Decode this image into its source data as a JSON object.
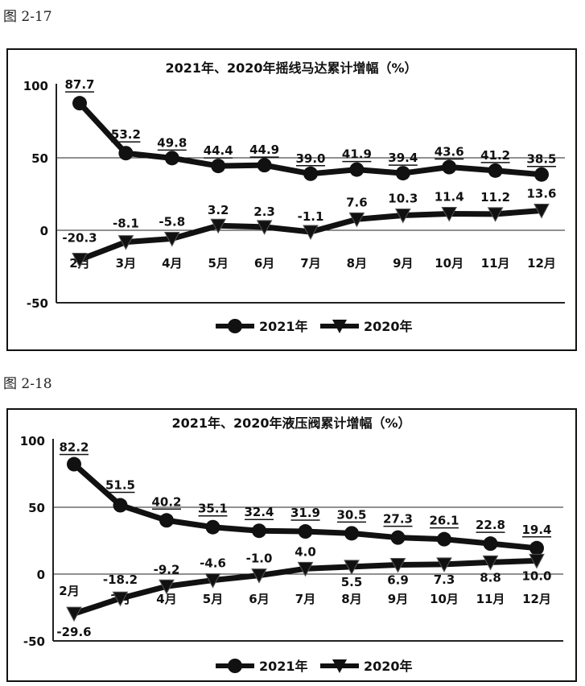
{
  "captions": [
    "图 2-17",
    "图 2-18"
  ],
  "colors": {
    "line": "#111111",
    "grid": "#222222",
    "background": "#ffffff"
  },
  "chart_data": [
    {
      "type": "line",
      "title": "2021年、2020年摇线马达累计增幅（%）",
      "categories": [
        "2月",
        "3月",
        "4月",
        "5月",
        "6月",
        "7月",
        "8月",
        "9月",
        "10月",
        "11月",
        "12月"
      ],
      "ylim": [
        -50,
        100
      ],
      "yticks": [
        "100",
        "50",
        "0",
        "-50"
      ],
      "grid": "horizontal lines at 50 and 0",
      "legend_position": "bottom",
      "series": [
        {
          "name": "2021年",
          "marker": "circle",
          "values": [
            87.7,
            53.2,
            49.8,
            44.4,
            44.9,
            39.0,
            41.9,
            39.4,
            43.6,
            41.2,
            38.5
          ],
          "labels": [
            "87.7",
            "53.2",
            "49.8",
            "44.4",
            "44.9",
            "39.0",
            "41.9",
            "39.4",
            "43.6",
            "41.2",
            "38.5"
          ]
        },
        {
          "name": "2020年",
          "marker": "triangle",
          "values": [
            -20.3,
            -8.1,
            -5.8,
            3.2,
            2.3,
            -1.1,
            7.6,
            10.3,
            11.4,
            11.2,
            13.6
          ],
          "labels": [
            "-20.3",
            "-8.1",
            "-5.8",
            "3.2",
            "2.3",
            "-1.1",
            "7.6",
            "10.3",
            "11.4",
            "11.2",
            "13.6"
          ]
        }
      ]
    },
    {
      "type": "line",
      "title": "2021年、2020年液压阀累计增幅（%）",
      "categories": [
        "2月",
        "3月",
        "4月",
        "5月",
        "6月",
        "7月",
        "8月",
        "9月",
        "10月",
        "11月",
        "12月"
      ],
      "ylim": [
        -50,
        100
      ],
      "yticks": [
        "100",
        "50",
        "0",
        "-50"
      ],
      "grid": "horizontal lines at 50 and 0",
      "legend_position": "bottom",
      "series": [
        {
          "name": "2021年",
          "marker": "circle",
          "values": [
            82.2,
            51.5,
            40.2,
            35.1,
            32.4,
            31.9,
            30.5,
            27.3,
            26.1,
            22.8,
            19.4
          ],
          "labels": [
            "82.2",
            "51.5",
            "40.2",
            "35.1",
            "32.4",
            "31.9",
            "30.5",
            "27.3",
            "26.1",
            "22.8",
            "19.4"
          ]
        },
        {
          "name": "2020年",
          "marker": "triangle",
          "values": [
            -29.6,
            -18.2,
            -9.2,
            -4.6,
            -1.0,
            4.0,
            5.5,
            6.9,
            7.3,
            8.8,
            10.0
          ],
          "labels": [
            "-29.6",
            "-18.2",
            "-9.2",
            "-4.6",
            "-1.0",
            "4.0",
            "5.5",
            "6.9",
            "7.3",
            "8.8",
            "10.0"
          ]
        }
      ]
    }
  ]
}
